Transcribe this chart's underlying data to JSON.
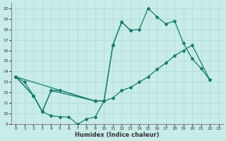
{
  "xlabel": "Humidex (Indice chaleur)",
  "xlim": [
    -0.5,
    23.5
  ],
  "ylim": [
    9,
    20.5
  ],
  "xticks": [
    0,
    1,
    2,
    3,
    4,
    5,
    6,
    7,
    8,
    9,
    10,
    11,
    12,
    13,
    14,
    15,
    16,
    17,
    18,
    19,
    20,
    21,
    22,
    23
  ],
  "yticks": [
    9,
    10,
    11,
    12,
    13,
    14,
    15,
    16,
    17,
    18,
    19,
    20
  ],
  "bg_color": "#c8ece8",
  "grid_color": "#b0ddd8",
  "line_color": "#1a7a6e",
  "series1_x": [
    0,
    1,
    2,
    3,
    4,
    5,
    6,
    7,
    8,
    9,
    10
  ],
  "series1_y": [
    13.5,
    13.0,
    11.7,
    10.2,
    9.8,
    9.7,
    9.7,
    9.0,
    9.5,
    9.7,
    11.2
  ],
  "series2_x": [
    0,
    2,
    3,
    4,
    5,
    9,
    10,
    11,
    12,
    13
  ],
  "series2_y": [
    13.5,
    11.7,
    10.2,
    12.2,
    12.2,
    11.2,
    11.2,
    16.5,
    18.7,
    17.9
  ],
  "series3_x": [
    0,
    2,
    3,
    4,
    9,
    10,
    11,
    12,
    13,
    14,
    15,
    16,
    17,
    18,
    19,
    20,
    21,
    22
  ],
  "series3_y": [
    13.5,
    11.7,
    10.2,
    12.2,
    11.2,
    11.2,
    16.5,
    18.7,
    17.9,
    18.0,
    20.0,
    19.2,
    18.5,
    18.8,
    16.7,
    15.2,
    14.3,
    13.2
  ],
  "series4_x": [
    0,
    9,
    10,
    11,
    12,
    13,
    14,
    15,
    16,
    17,
    18,
    19,
    20,
    22
  ],
  "series4_y": [
    13.5,
    11.2,
    11.2,
    11.5,
    12.2,
    12.5,
    13.0,
    13.5,
    14.2,
    14.8,
    15.5,
    16.0,
    16.5,
    13.2
  ]
}
